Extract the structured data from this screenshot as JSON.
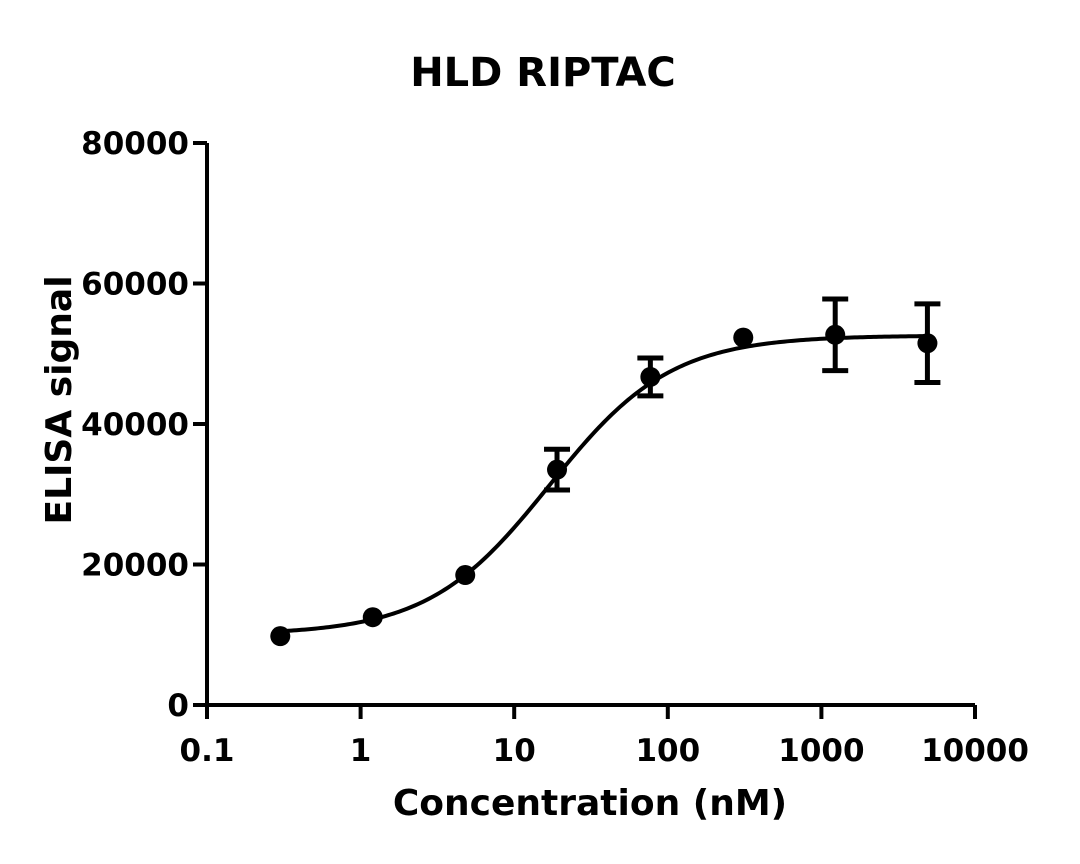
{
  "chart_data": {
    "type": "scatter",
    "title": "HLD RIPTAC",
    "xlabel": "Concentration (nM)",
    "ylabel": "ELISA signal",
    "x_scale": "log",
    "xlim": [
      0.1,
      10000
    ],
    "ylim": [
      0,
      80000
    ],
    "x_ticks": [
      0.1,
      1,
      10,
      100,
      1000,
      10000
    ],
    "x_tick_labels": [
      "0.1",
      "1",
      "10",
      "100",
      "1000",
      "10000"
    ],
    "y_ticks": [
      0,
      20000,
      40000,
      60000,
      80000
    ],
    "y_tick_labels": [
      "0",
      "20000",
      "40000",
      "60000",
      "80000"
    ],
    "grid": false,
    "series": [
      {
        "points": [
          {
            "x": 0.3,
            "y": 9800,
            "err": 0
          },
          {
            "x": 1.2,
            "y": 12500,
            "err": 0
          },
          {
            "x": 4.8,
            "y": 18500,
            "err": 0
          },
          {
            "x": 19,
            "y": 33500,
            "err": 2900
          },
          {
            "x": 77,
            "y": 46700,
            "err": 2700
          },
          {
            "x": 310,
            "y": 52300,
            "err": 0
          },
          {
            "x": 1230,
            "y": 52700,
            "err": 5100
          },
          {
            "x": 4900,
            "y": 51500,
            "err": 5600
          }
        ],
        "fit": {
          "model": "sigmoidal dose-response",
          "bottom": 10000,
          "top": 52600,
          "ec50": 17,
          "hill": 1.1
        }
      }
    ]
  }
}
